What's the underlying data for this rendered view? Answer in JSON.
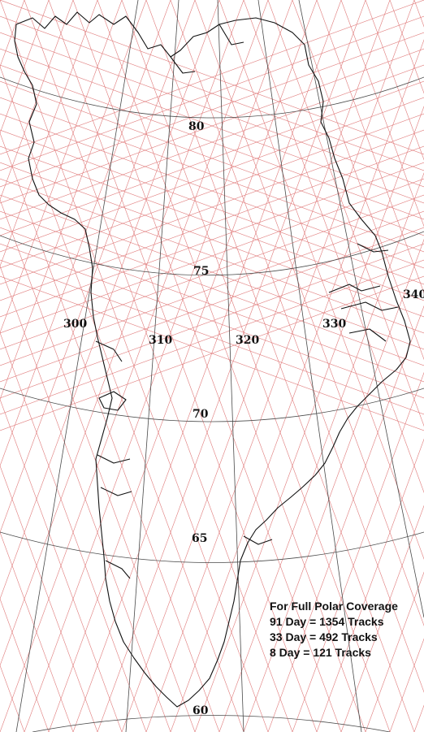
{
  "latitude_labels": [
    "80",
    "75",
    "70",
    "65",
    "60"
  ],
  "longitude_labels": [
    "300",
    "310",
    "320",
    "330",
    "340"
  ],
  "legend": {
    "title": "For Full Polar Coverage",
    "lines": [
      "91 Day = 1354 Tracks",
      "33 Day = 492 Tracks",
      "8 Day = 121 Tracks"
    ]
  },
  "colors": {
    "track": "#e07a7a",
    "graticule": "#4a4a4a",
    "coast": "#111111",
    "background": "#ffffff"
  }
}
